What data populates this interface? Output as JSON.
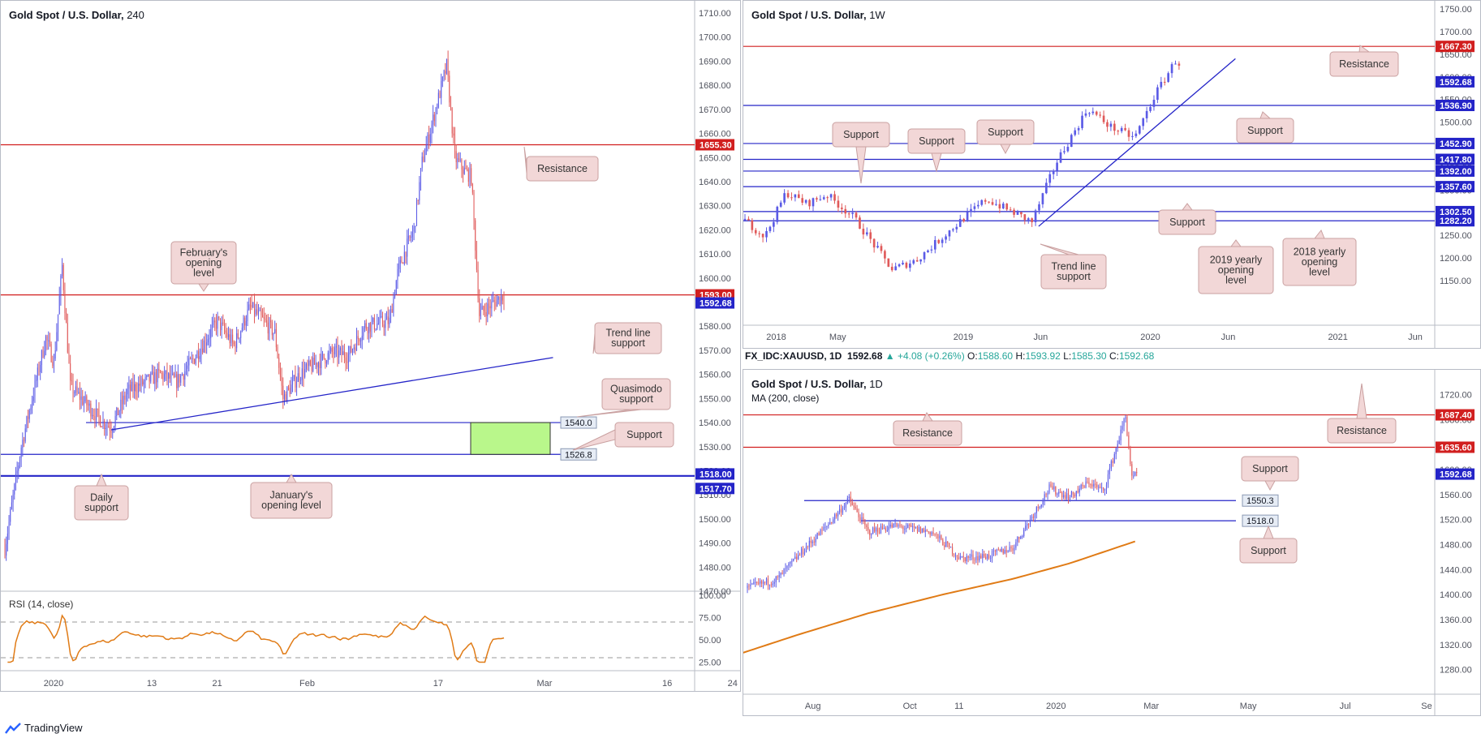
{
  "footer": {
    "brand": "TradingView"
  },
  "colors": {
    "bull": "#5b5be6",
    "bear": "#e05a5a",
    "resistance": "#d11f1f",
    "support": "#2424c8",
    "callout_bg": "#f2d7d7",
    "callout_border": "#c9a0a0",
    "zone": "#b9f78b",
    "rsi": "#e07b16",
    "ma": "#e07b16"
  },
  "info_bar": {
    "symbol": "FX_IDC:XAUUSD, 1D",
    "price": "1592.68",
    "change": "▲ +4.08 (+0.26%)",
    "open_label": "O:",
    "open": "1588.60",
    "high_label": "H:",
    "high": "1593.92",
    "low_label": "L:",
    "low": "1585.30",
    "close_label": "C:",
    "close": "1592.68"
  },
  "chart_data": [
    {
      "type": "candlestick",
      "title": "Gold Spot / U.S. Dollar",
      "timeframe": "240",
      "ylim": [
        1470,
        1710
      ],
      "y_ticks": [
        "1710.00",
        "1700.00",
        "1690.00",
        "1680.00",
        "1670.00",
        "1660.00",
        "1650.00",
        "1640.00",
        "1630.00",
        "1620.00",
        "1610.00",
        "1600.00",
        "1590.00",
        "1580.00",
        "1570.00",
        "1560.00",
        "1550.00",
        "1540.00",
        "1530.00",
        "1520.00",
        "1510.00",
        "1500.00",
        "1490.00",
        "1480.00",
        "1470.00"
      ],
      "x_ticks": [
        "2020",
        "13",
        "21",
        "Feb",
        "17",
        "Mar",
        "16",
        "24"
      ],
      "path": [
        [
          "2020-01-01",
          1488
        ],
        [
          "2020-01-03",
          1530
        ],
        [
          "2020-01-06",
          1575
        ],
        [
          "2020-01-07",
          1565
        ],
        [
          "2020-01-08",
          1605
        ],
        [
          "2020-01-09",
          1555
        ],
        [
          "2020-01-13",
          1540
        ],
        [
          "2020-01-14",
          1538
        ],
        [
          "2020-01-16",
          1553
        ],
        [
          "2020-01-20",
          1560
        ],
        [
          "2020-01-22",
          1557
        ],
        [
          "2020-01-24",
          1566
        ],
        [
          "2020-01-27",
          1582
        ],
        [
          "2020-01-29",
          1572
        ],
        [
          "2020-01-31",
          1588
        ],
        [
          "2020-02-03",
          1577
        ],
        [
          "2020-02-04",
          1550
        ],
        [
          "2020-02-06",
          1560
        ],
        [
          "2020-02-10",
          1569
        ],
        [
          "2020-02-12",
          1568
        ],
        [
          "2020-02-14",
          1580
        ],
        [
          "2020-02-17",
          1582
        ],
        [
          "2020-02-18",
          1602
        ],
        [
          "2020-02-19",
          1612
        ],
        [
          "2020-02-20",
          1620
        ],
        [
          "2020-02-21",
          1648
        ],
        [
          "2020-02-24",
          1688
        ],
        [
          "2020-02-25",
          1650
        ],
        [
          "2020-02-26",
          1645
        ],
        [
          "2020-02-27",
          1642
        ],
        [
          "2020-02-28",
          1585
        ],
        [
          "2020-03-02",
          1593
        ]
      ],
      "levels": [
        {
          "value": 1655.3,
          "label": "1655.30",
          "color": "resistance",
          "role": "Resistance"
        },
        {
          "value": 1593.0,
          "label": "1593.00",
          "color": "resistance",
          "role": "February's opening level"
        },
        {
          "value": 1540.0,
          "label": "1540.0",
          "color": "support",
          "role": "Quasimodo support"
        },
        {
          "value": 1526.8,
          "label": "1526.8",
          "color": "support",
          "role": "Support"
        },
        {
          "value": 1518.0,
          "label": "1518.00",
          "color": "support",
          "role": "Daily support"
        },
        {
          "value": 1517.7,
          "label": "1517.70",
          "color": "support",
          "role": "January's opening level"
        }
      ],
      "current_price": "1592.68",
      "zone": {
        "from": 1526.8,
        "to": 1540.0
      },
      "trend_line": [
        [
          "2020-01-14",
          1537
        ],
        [
          "2020-03-08",
          1567
        ]
      ],
      "annotations": [
        "Resistance",
        "February's opening level",
        "Trend line support",
        "Quasimodo support",
        "Support",
        "Daily support",
        "January's opening level"
      ],
      "rsi": {
        "label": "RSI (14, close)",
        "ylim": [
          20,
          100
        ],
        "levels": [
          70,
          30
        ],
        "ticks": [
          "100.00",
          "75.00",
          "50.00",
          "25.00"
        ]
      }
    },
    {
      "type": "candlestick",
      "title": "Gold Spot / U.S. Dollar",
      "timeframe": "1W",
      "ylim": [
        1100,
        1750
      ],
      "y_ticks": [
        "1750.00",
        "1700.00",
        "1650.00",
        "1600.00",
        "1550.00",
        "1500.00",
        "1450.00",
        "1400.00",
        "1350.00",
        "1300.00",
        "1250.00",
        "1200.00",
        "1150.00"
      ],
      "x_ticks": [
        "2018",
        "May",
        "2019",
        "Jun",
        "2020",
        "Jun",
        "2021",
        "Jun"
      ],
      "path": [
        [
          "2017-11-01",
          1283
        ],
        [
          "2017-12-10",
          1247
        ],
        [
          "2018-01-20",
          1345
        ],
        [
          "2018-03-01",
          1320
        ],
        [
          "2018-04-10",
          1340
        ],
        [
          "2018-06-01",
          1290
        ],
        [
          "2018-08-15",
          1175
        ],
        [
          "2018-10-01",
          1195
        ],
        [
          "2019-01-01",
          1287
        ],
        [
          "2019-02-15",
          1330
        ],
        [
          "2019-05-15",
          1280
        ],
        [
          "2019-07-01",
          1410
        ],
        [
          "2019-09-01",
          1530
        ],
        [
          "2019-10-15",
          1490
        ],
        [
          "2019-12-01",
          1465
        ],
        [
          "2020-01-10",
          1560
        ],
        [
          "2020-02-24",
          1645
        ],
        [
          "2020-03-02",
          1592
        ]
      ],
      "levels": [
        {
          "value": 1667.3,
          "label": "1667.30",
          "color": "resistance",
          "role": "Resistance"
        },
        {
          "value": 1536.9,
          "label": "1536.90",
          "color": "support",
          "role": "Support"
        },
        {
          "value": 1452.9,
          "label": "1452.90",
          "color": "support",
          "role": "Support"
        },
        {
          "value": 1417.8,
          "label": "1417.80",
          "color": "support",
          "role": "Support"
        },
        {
          "value": 1392.0,
          "label": "1392.00",
          "color": "support",
          "role": "Support"
        },
        {
          "value": 1357.6,
          "label": "1357.60",
          "color": "support",
          "role": "Support"
        },
        {
          "value": 1302.5,
          "label": "1302.50",
          "color": "support",
          "role": "2019 yearly opening level"
        },
        {
          "value": 1282.2,
          "label": "1282.20",
          "color": "support",
          "role": "2018 yearly opening level"
        }
      ],
      "current_price": "1592.68",
      "trend_line": [
        [
          "2019-05-28",
          1270
        ],
        [
          "2020-06-15",
          1640
        ]
      ],
      "annotations": [
        "Resistance",
        "Support",
        "Support",
        "Support",
        "Support",
        "Support",
        "Trend line support",
        "2019 yearly opening level",
        "2018 yearly opening level"
      ]
    },
    {
      "type": "candlestick",
      "title": "Gold Spot / U.S. Dollar",
      "timeframe": "1D",
      "indicator": "MA (200, close)",
      "ylim": [
        1260,
        1740
      ],
      "y_ticks": [
        "1720.00",
        "1680.00",
        "1640.00",
        "1600.00",
        "1560.00",
        "1520.00",
        "1480.00",
        "1440.00",
        "1400.00",
        "1360.00",
        "1320.00",
        "1280.00"
      ],
      "x_ticks": [
        "Aug",
        "Oct",
        "11",
        "2020",
        "Mar",
        "May",
        "Jul",
        "Se"
      ],
      "path": [
        [
          "2019-07-01",
          1410
        ],
        [
          "2019-07-20",
          1425
        ],
        [
          "2019-08-05",
          1470
        ],
        [
          "2019-08-20",
          1510
        ],
        [
          "2019-09-03",
          1552
        ],
        [
          "2019-09-15",
          1500
        ],
        [
          "2019-10-01",
          1510
        ],
        [
          "2019-10-25",
          1500
        ],
        [
          "2019-11-12",
          1458
        ],
        [
          "2019-11-30",
          1462
        ],
        [
          "2019-12-15",
          1475
        ],
        [
          "2020-01-07",
          1570
        ],
        [
          "2020-01-20",
          1556
        ],
        [
          "2020-02-01",
          1580
        ],
        [
          "2020-02-10",
          1565
        ],
        [
          "2020-02-24",
          1685
        ],
        [
          "2020-02-28",
          1585
        ],
        [
          "2020-03-02",
          1592
        ]
      ],
      "ma_path": [
        [
          "2019-06-20",
          1300
        ],
        [
          "2019-08-01",
          1335
        ],
        [
          "2019-09-15",
          1370
        ],
        [
          "2019-11-01",
          1400
        ],
        [
          "2019-12-15",
          1425
        ],
        [
          "2020-01-20",
          1450
        ],
        [
          "2020-03-01",
          1485
        ]
      ],
      "levels": [
        {
          "value": 1687.4,
          "label": "1687.40",
          "color": "resistance",
          "role": "Resistance"
        },
        {
          "value": 1635.6,
          "label": "1635.60",
          "color": "resistance",
          "role": "Resistance"
        },
        {
          "value": 1550.3,
          "label": "1550.3",
          "color": "support",
          "role": "Support"
        },
        {
          "value": 1518.0,
          "label": "1518.0",
          "color": "support",
          "role": "Support"
        }
      ],
      "current_price": "1592.68",
      "annotations": [
        "Resistance",
        "Resistance",
        "Support",
        "Support"
      ]
    }
  ]
}
